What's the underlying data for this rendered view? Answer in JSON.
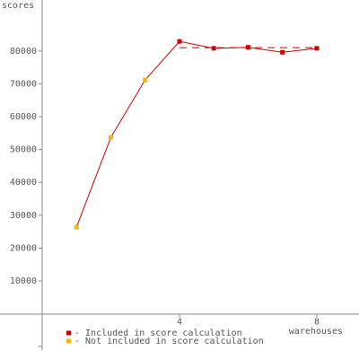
{
  "chart_data": {
    "type": "line",
    "y_label": "scores",
    "x_label": "warehouses",
    "x": [
      1,
      2,
      3,
      4,
      5,
      6,
      7,
      8
    ],
    "values": [
      26400,
      53700,
      71200,
      82900,
      80800,
      81100,
      79600,
      80800
    ],
    "included": [
      false,
      false,
      false,
      true,
      true,
      true,
      true,
      true
    ],
    "line_color": "#cc0000",
    "legend": [
      {
        "label": "- Included in score calculation",
        "color": "#cc0000"
      },
      {
        "label": "- Not included in score calculation",
        "color": "#f5b800"
      }
    ],
    "reference_line": {
      "value": 81000,
      "from": 4,
      "to": 8
    },
    "xlim": [
      0,
      9.23
    ],
    "xticks": [
      4,
      8
    ],
    "ylim": [
      -11000,
      95500
    ],
    "yticks": [
      10000,
      20000,
      30000,
      40000,
      50000,
      60000,
      70000,
      80000
    ],
    "grid": false
  }
}
